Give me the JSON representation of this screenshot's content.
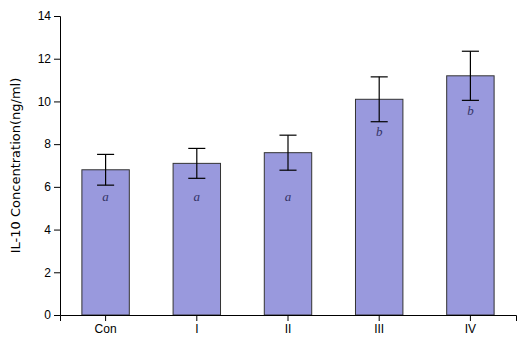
{
  "chart_data": {
    "type": "bar",
    "categories": [
      "Con",
      "I",
      "II",
      "III",
      "IV"
    ],
    "values": [
      6.8,
      7.1,
      7.6,
      10.1,
      11.2
    ],
    "errors": [
      0.72,
      0.7,
      0.82,
      1.05,
      1.15
    ],
    "color": "#9999dd",
    "ylabel": "IL-10 Concentration(ng/ml)",
    "ylim": [
      0,
      14
    ],
    "yticks": [
      0,
      2,
      4,
      6,
      8,
      10,
      12,
      14
    ],
    "grid": false,
    "annotations": [
      {
        "x": "Con",
        "y": 5.5,
        "text": "a"
      },
      {
        "x": "I",
        "y": 5.5,
        "text": "a"
      },
      {
        "x": "II",
        "y": 5.5,
        "text": "a"
      },
      {
        "x": "III",
        "y": 8.5,
        "text": "b"
      },
      {
        "x": "IV",
        "y": 9.5,
        "text": "b"
      }
    ]
  }
}
